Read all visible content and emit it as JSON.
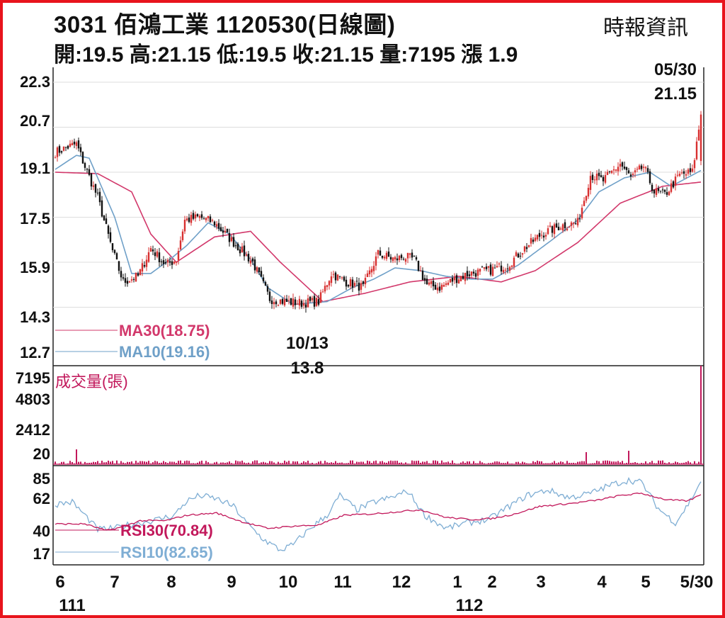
{
  "header": {
    "title": "3031  佰鴻工業 1120530(日線圖)",
    "source": "時報資訊",
    "ohlc_line": "開:19.5 高:21.15 低:19.5 收:21.15 量:7195 漲 1.9"
  },
  "colors": {
    "border": "#e8141c",
    "ma30": "#d2386b",
    "ma10": "#6fa0c8",
    "volume": "#c2185b",
    "rsi30": "#c2185b",
    "rsi10": "#7faed4",
    "up_candle": "#d83030",
    "down_candle": "#111111",
    "grid": "#dddddd"
  },
  "chart_data": [
    {
      "type": "candlestick",
      "panel": "price",
      "y_ticks": [
        "22.3",
        "20.7",
        "19.1",
        "17.5",
        "15.9",
        "14.3",
        "12.7"
      ],
      "ylim": [
        12.7,
        22.3
      ],
      "x_ticks": [
        "6",
        "7",
        "8",
        "9",
        "10",
        "11",
        "12",
        "1",
        "2",
        "3",
        "4",
        "5",
        "5/30"
      ],
      "x_year_labels": [
        "111",
        "112"
      ],
      "legend": [
        {
          "key": "ma30",
          "label": "MA30(18.75)"
        },
        {
          "key": "ma10",
          "label": "MA10(19.16)"
        }
      ],
      "annotations": {
        "high": {
          "date": "05/30",
          "value": "21.15"
        },
        "low": {
          "date": "10/13",
          "value": "13.8"
        }
      },
      "close_anchors": [
        [
          0,
          19.8
        ],
        [
          6,
          20.0
        ],
        [
          10,
          20.1
        ],
        [
          14,
          19.3
        ],
        [
          20,
          18.2
        ],
        [
          27,
          16.3
        ],
        [
          32,
          15.2
        ],
        [
          39,
          15.4
        ],
        [
          45,
          16.4
        ],
        [
          52,
          15.8
        ],
        [
          57,
          16.0
        ],
        [
          61,
          17.4
        ],
        [
          68,
          17.5
        ],
        [
          75,
          17.3
        ],
        [
          84,
          16.6
        ],
        [
          93,
          15.9
        ],
        [
          101,
          14.6
        ],
        [
          108,
          14.5
        ],
        [
          116,
          14.45
        ],
        [
          124,
          14.5
        ],
        [
          130,
          15.5
        ],
        [
          137,
          15.2
        ],
        [
          145,
          15.0
        ],
        [
          152,
          16.2
        ],
        [
          160,
          16.0
        ],
        [
          164,
          16.1
        ],
        [
          169,
          16.0
        ],
        [
          175,
          15.1
        ],
        [
          181,
          15.0
        ],
        [
          188,
          15.3
        ],
        [
          195,
          15.5
        ],
        [
          204,
          15.6
        ],
        [
          213,
          15.8
        ],
        [
          221,
          16.4
        ],
        [
          229,
          16.9
        ],
        [
          238,
          17.2
        ],
        [
          246,
          17.3
        ],
        [
          252,
          19.0
        ],
        [
          258,
          18.8
        ],
        [
          266,
          19.4
        ],
        [
          271,
          18.9
        ],
        [
          277,
          19.3
        ],
        [
          282,
          18.4
        ],
        [
          287,
          18.3
        ],
        [
          294,
          19.0
        ],
        [
          300,
          19.1
        ],
        [
          304,
          21.15
        ]
      ],
      "ma30_anchors": [
        [
          0,
          19.1
        ],
        [
          20,
          19.05
        ],
        [
          36,
          18.4
        ],
        [
          45,
          16.9
        ],
        [
          57,
          15.9
        ],
        [
          75,
          16.8
        ],
        [
          92,
          17.0
        ],
        [
          106,
          15.9
        ],
        [
          126,
          14.5
        ],
        [
          146,
          14.8
        ],
        [
          167,
          15.2
        ],
        [
          190,
          15.4
        ],
        [
          210,
          15.2
        ],
        [
          226,
          15.6
        ],
        [
          246,
          16.6
        ],
        [
          266,
          18.0
        ],
        [
          286,
          18.6
        ],
        [
          304,
          18.75
        ]
      ],
      "ma10_anchors": [
        [
          0,
          19.2
        ],
        [
          10,
          19.7
        ],
        [
          16,
          19.6
        ],
        [
          28,
          17.5
        ],
        [
          36,
          15.5
        ],
        [
          45,
          15.5
        ],
        [
          54,
          16.0
        ],
        [
          62,
          16.5
        ],
        [
          72,
          17.3
        ],
        [
          82,
          16.9
        ],
        [
          92,
          16.0
        ],
        [
          100,
          15.0
        ],
        [
          112,
          14.4
        ],
        [
          128,
          14.5
        ],
        [
          140,
          15.0
        ],
        [
          150,
          15.3
        ],
        [
          160,
          15.7
        ],
        [
          172,
          15.6
        ],
        [
          184,
          15.4
        ],
        [
          196,
          15.3
        ],
        [
          206,
          15.3
        ],
        [
          218,
          15.8
        ],
        [
          234,
          16.7
        ],
        [
          246,
          17.4
        ],
        [
          256,
          18.4
        ],
        [
          268,
          18.9
        ],
        [
          280,
          19.1
        ],
        [
          290,
          18.6
        ],
        [
          304,
          19.16
        ]
      ]
    },
    {
      "type": "bar",
      "panel": "volume",
      "title": "成交量(張)",
      "y_ticks": [
        "7195",
        "4803",
        "2412",
        "20"
      ],
      "ylim": [
        20,
        7195
      ],
      "spikes": [
        [
          10,
          1100
        ],
        [
          250,
          900
        ],
        [
          270,
          1000
        ],
        [
          304,
          7195
        ]
      ]
    },
    {
      "type": "line",
      "panel": "rsi",
      "y_ticks": [
        "85",
        "62",
        "40",
        "17"
      ],
      "ylim": [
        17,
        85
      ],
      "legend": [
        {
          "key": "rsi30",
          "label": "RSI30(70.84)"
        },
        {
          "key": "rsi10",
          "label": "RSI10(82.65)"
        }
      ],
      "rsi30_anchors": [
        [
          0,
          44
        ],
        [
          14,
          44
        ],
        [
          24,
          38
        ],
        [
          31,
          41
        ],
        [
          40,
          47
        ],
        [
          52,
          47
        ],
        [
          62,
          52
        ],
        [
          76,
          54
        ],
        [
          88,
          46
        ],
        [
          100,
          40
        ],
        [
          112,
          42
        ],
        [
          124,
          43
        ],
        [
          136,
          52
        ],
        [
          148,
          53
        ],
        [
          160,
          55
        ],
        [
          172,
          57
        ],
        [
          184,
          50
        ],
        [
          196,
          48
        ],
        [
          206,
          49
        ],
        [
          216,
          53
        ],
        [
          228,
          60
        ],
        [
          244,
          63
        ],
        [
          256,
          66
        ],
        [
          266,
          70
        ],
        [
          276,
          72
        ],
        [
          288,
          66
        ],
        [
          298,
          65
        ],
        [
          304,
          70.84
        ]
      ],
      "rsi10_anchors": [
        [
          0,
          62
        ],
        [
          8,
          64
        ],
        [
          14,
          52
        ],
        [
          20,
          39
        ],
        [
          28,
          40
        ],
        [
          34,
          43
        ],
        [
          40,
          45
        ],
        [
          48,
          48
        ],
        [
          56,
          52
        ],
        [
          62,
          65
        ],
        [
          68,
          70
        ],
        [
          76,
          67
        ],
        [
          84,
          60
        ],
        [
          90,
          45
        ],
        [
          98,
          30
        ],
        [
          106,
          20
        ],
        [
          112,
          25
        ],
        [
          120,
          40
        ],
        [
          128,
          52
        ],
        [
          134,
          70
        ],
        [
          142,
          57
        ],
        [
          150,
          64
        ],
        [
          158,
          68
        ],
        [
          166,
          74
        ],
        [
          174,
          52
        ],
        [
          184,
          40
        ],
        [
          194,
          45
        ],
        [
          204,
          48
        ],
        [
          212,
          58
        ],
        [
          222,
          70
        ],
        [
          232,
          75
        ],
        [
          242,
          68
        ],
        [
          252,
          72
        ],
        [
          262,
          80
        ],
        [
          270,
          84
        ],
        [
          276,
          82
        ],
        [
          284,
          58
        ],
        [
          292,
          45
        ],
        [
          298,
          62
        ],
        [
          304,
          82.65
        ]
      ]
    }
  ]
}
